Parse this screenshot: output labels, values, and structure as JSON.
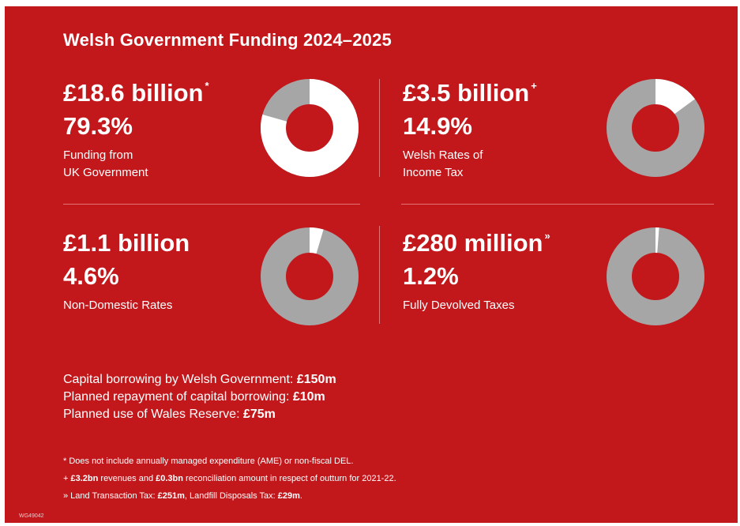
{
  "title": "Welsh Government Funding 2024–2025",
  "colors": {
    "background": "#c2181c",
    "highlight": "#ffffff",
    "remainder": "#a6a6a6"
  },
  "chart_data": [
    {
      "type": "pie",
      "style": "donut",
      "amount": "£18.6 billion",
      "marker": "*",
      "percent_label": "79.3%",
      "value": 79.3,
      "label_lines": [
        "Funding from",
        "UK Government"
      ]
    },
    {
      "type": "pie",
      "style": "donut",
      "amount": "£3.5 billion",
      "marker": "+",
      "percent_label": "14.9%",
      "value": 14.9,
      "label_lines": [
        "Welsh Rates of",
        "Income Tax"
      ]
    },
    {
      "type": "pie",
      "style": "donut",
      "amount": "£1.1 billion",
      "marker": "",
      "percent_label": "4.6%",
      "value": 4.6,
      "label_lines": [
        "Non-Domestic Rates"
      ]
    },
    {
      "type": "pie",
      "style": "donut",
      "amount": "£280 million",
      "marker": "»",
      "percent_label": "1.2%",
      "value": 1.2,
      "label_lines": [
        "Fully Devolved Taxes"
      ]
    }
  ],
  "notes": [
    {
      "text": "Capital borrowing by Welsh Government: ",
      "value": "£150m"
    },
    {
      "text": "Planned repayment of capital borrowing: ",
      "value": "£10m"
    },
    {
      "text": "Planned use of Wales Reserve: ",
      "value": "£75m"
    }
  ],
  "footnotes": {
    "f1": "* Does not include annually managed expenditure (AME) or non-fiscal DEL.",
    "f2_a": "+ ",
    "f2_b": "£3.2bn",
    "f2_c": " revenues and ",
    "f2_d": "£0.3bn",
    "f2_e": " reconciliation amount in respect of outturn for 2021-22.",
    "f3_a": "» Land Transaction Tax: ",
    "f3_b": "£251m",
    "f3_c": ", Landfill Disposals Tax: ",
    "f3_d": "£29m",
    "f3_e": "."
  },
  "code": "WG49042"
}
